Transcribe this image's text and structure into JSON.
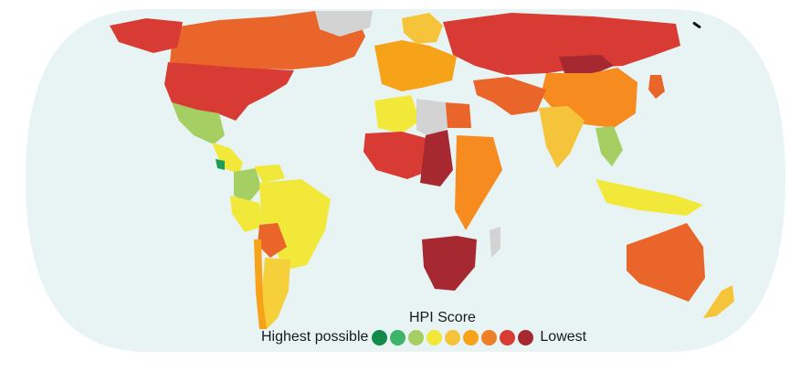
{
  "map": {
    "ocean_color": "#e8f4f4",
    "no_data_color": "#d3d3d3",
    "regions": [
      {
        "id": "canada",
        "color": "#e9652a"
      },
      {
        "id": "alaska",
        "color": "#d83a34"
      },
      {
        "id": "usa",
        "color": "#d83a34"
      },
      {
        "id": "greenland",
        "color": "#d3d3d3"
      },
      {
        "id": "mexico",
        "color": "#a6cf63"
      },
      {
        "id": "central-america",
        "color": "#f1e83a"
      },
      {
        "id": "costa-rica",
        "color": "#1e9e55"
      },
      {
        "id": "colombia",
        "color": "#a6cf63"
      },
      {
        "id": "venezuela",
        "color": "#f1e83a"
      },
      {
        "id": "brazil",
        "color": "#f1e83a"
      },
      {
        "id": "peru",
        "color": "#f1e83a"
      },
      {
        "id": "bolivia",
        "color": "#e9652a"
      },
      {
        "id": "argentina",
        "color": "#f6d03a"
      },
      {
        "id": "chile",
        "color": "#f6a31a"
      },
      {
        "id": "western-europe",
        "color": "#f6a31a"
      },
      {
        "id": "scandinavia",
        "color": "#f6c43a"
      },
      {
        "id": "russia",
        "color": "#d83a34"
      },
      {
        "id": "mongolia",
        "color": "#a62932"
      },
      {
        "id": "china",
        "color": "#f68b1f"
      },
      {
        "id": "middle-east",
        "color": "#e9652a"
      },
      {
        "id": "india",
        "color": "#f6c43a"
      },
      {
        "id": "southeast-asia",
        "color": "#a6cf63"
      },
      {
        "id": "indonesia",
        "color": "#f1e83a"
      },
      {
        "id": "japan",
        "color": "#e9652a"
      },
      {
        "id": "north-africa",
        "color": "#f1e83a"
      },
      {
        "id": "egypt",
        "color": "#e9652a"
      },
      {
        "id": "saharan-africa",
        "color": "#d3d3d3"
      },
      {
        "id": "west-africa",
        "color": "#d83a34"
      },
      {
        "id": "central-africa",
        "color": "#a62932"
      },
      {
        "id": "east-africa",
        "color": "#f68b1f"
      },
      {
        "id": "southern-africa",
        "color": "#a62932"
      },
      {
        "id": "australia",
        "color": "#e9652a"
      },
      {
        "id": "new-zealand",
        "color": "#f6c43a"
      },
      {
        "id": "madagascar",
        "color": "#d3d3d3"
      }
    ]
  },
  "legend": {
    "title": "HPI Score",
    "high_label": "Highest possible",
    "low_label": "Lowest",
    "swatch_colors": [
      "#138a4a",
      "#3cb46a",
      "#a6cf63",
      "#f1e83a",
      "#f6c43a",
      "#f6a31a",
      "#ef7f26",
      "#d83a34",
      "#a62932"
    ]
  }
}
